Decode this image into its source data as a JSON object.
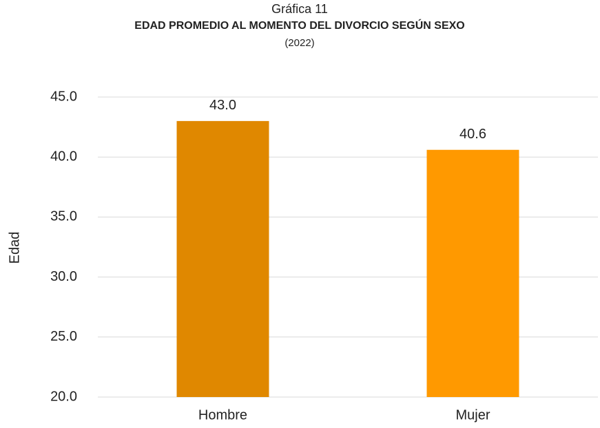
{
  "chart_data": {
    "type": "bar",
    "title": "Gráfica 11",
    "subtitle": "EDAD PROMEDIO AL MOMENTO DEL DIVORCIO SEGÚN SEXO",
    "note": "(2022)",
    "y_label": "Edad",
    "categories": [
      "Hombre",
      "Mujer"
    ],
    "values": [
      43.0,
      40.6
    ],
    "value_labels": [
      "43.0",
      "40.6"
    ],
    "colors": [
      "#e08800",
      "#ff9900"
    ],
    "ylim": [
      20,
      45
    ],
    "yticks": [
      {
        "value": 20,
        "label": "20.0"
      },
      {
        "value": 25,
        "label": "25.0"
      },
      {
        "value": 30,
        "label": "30.0"
      },
      {
        "value": 35,
        "label": "35.0"
      },
      {
        "value": 40,
        "label": "40.0"
      },
      {
        "value": 45,
        "label": "45.0"
      }
    ],
    "grid": true
  }
}
